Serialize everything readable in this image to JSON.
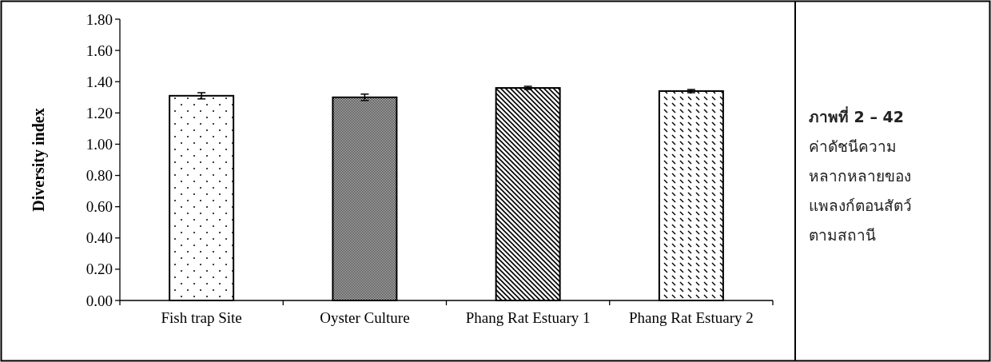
{
  "chart_data": {
    "type": "bar",
    "ylabel": "Diversity index",
    "categories": [
      "Fish trap Site",
      "Oyster Culture",
      "Phang Rat Estuary 1",
      "Phang Rat Estuary 2"
    ],
    "values": [
      1.31,
      1.3,
      1.36,
      1.34
    ],
    "errors": [
      0.02,
      0.02,
      0.01,
      0.01
    ],
    "color": "#000000",
    "ylim": [
      0,
      1.8
    ],
    "yticks": [
      {
        "value": 0,
        "label": "0.00"
      },
      {
        "value": 0.2,
        "label": "0.20"
      },
      {
        "value": 0.4,
        "label": "0.40"
      },
      {
        "value": 0.6,
        "label": "0.60"
      },
      {
        "value": 0.8,
        "label": "0.80"
      },
      {
        "value": 1.0,
        "label": "1.00"
      },
      {
        "value": 1.2,
        "label": "1.20"
      },
      {
        "value": 1.4,
        "label": "1.40"
      },
      {
        "value": 1.6,
        "label": "1.60"
      },
      {
        "value": 1.8,
        "label": "1.80"
      }
    ],
    "annotations": [
      "ภาพที่ 2 – 42",
      "ค่าดัชนีความหลากหลายของแพลงก์ตอนสัตว์ตามสถานี"
    ]
  }
}
